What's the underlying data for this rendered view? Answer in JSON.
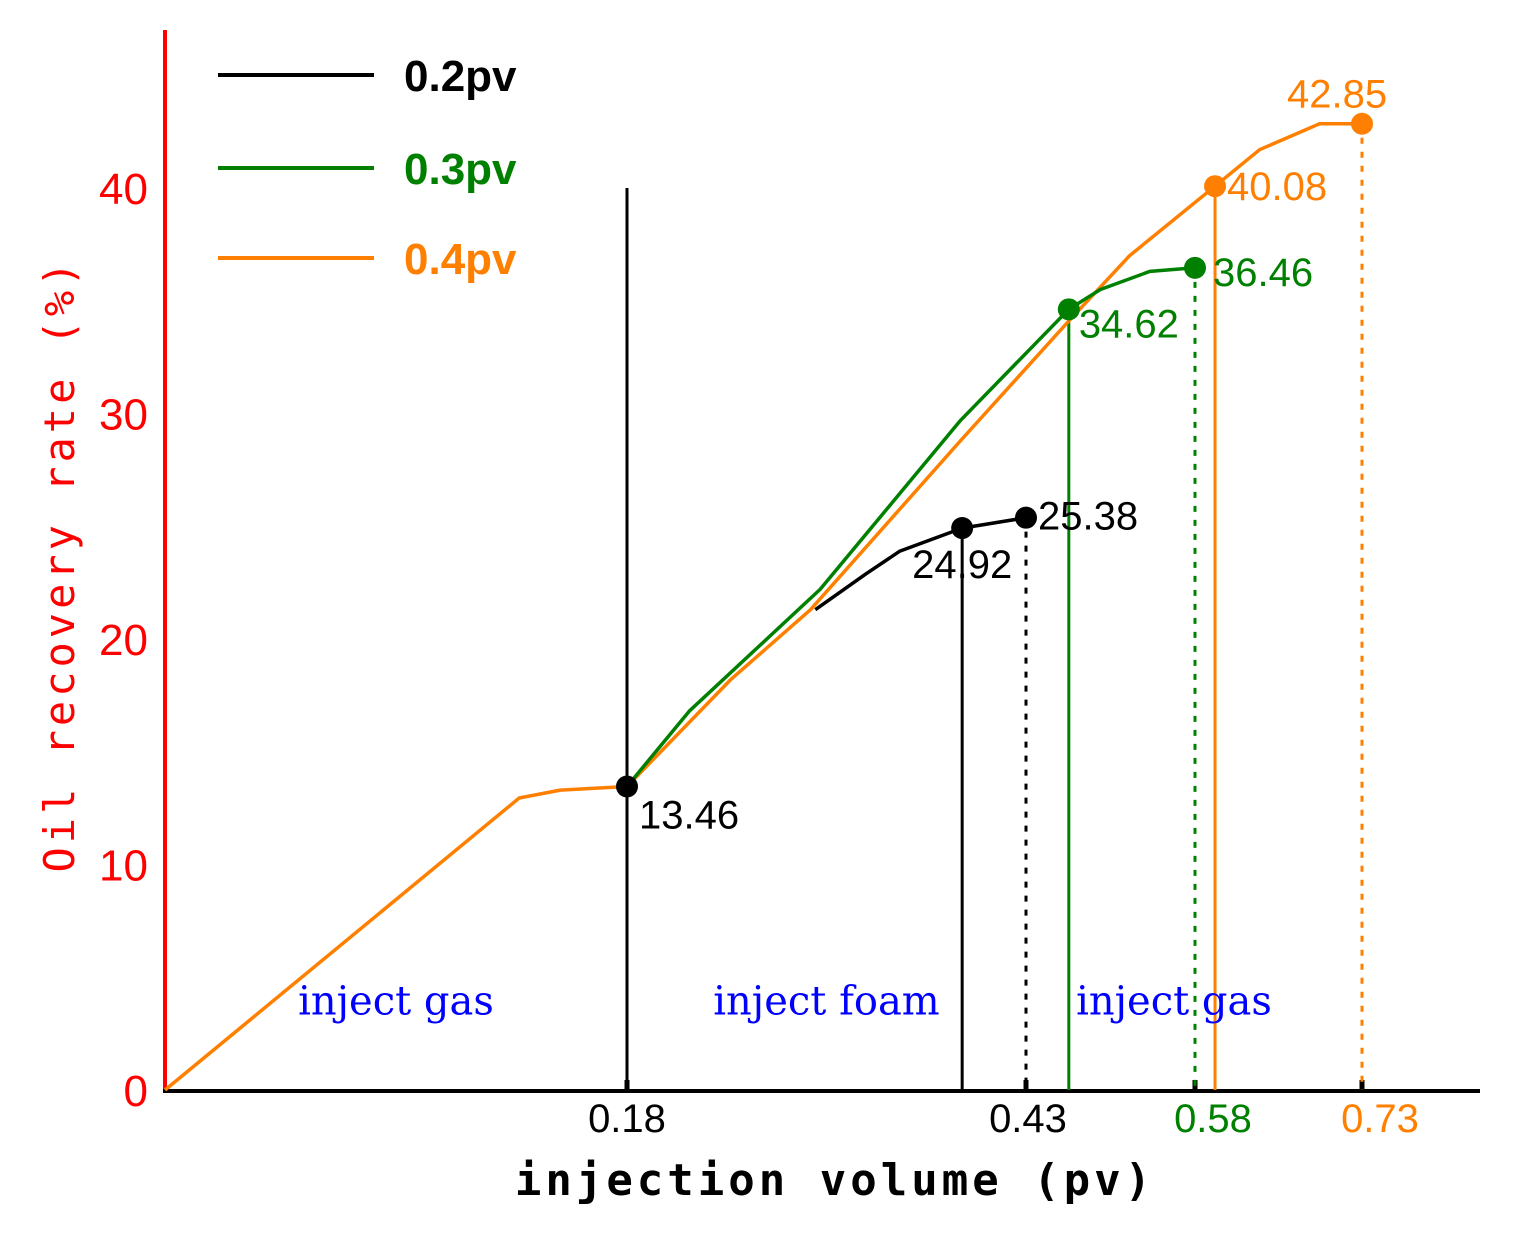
{
  "chart_data": {
    "type": "line",
    "title": "",
    "xlabel": "injection volume (pv)",
    "ylabel": "Oil recovery rate (%)",
    "ylim": [
      0,
      47
    ],
    "yticks": [
      0,
      10,
      20,
      30,
      40
    ],
    "ytick_labels": [
      "0",
      "10",
      "20",
      "30",
      "40"
    ],
    "xticks": [
      {
        "value": 0.18,
        "label": "0.18",
        "color": "#000000"
      },
      {
        "value": 0.43,
        "label": "0.43",
        "color": "#000000"
      },
      {
        "value": 0.58,
        "label": "0.58",
        "color": "#008000"
      },
      {
        "value": 0.73,
        "label": "0.73",
        "color": "#FF8000"
      }
    ],
    "grid": false,
    "legend_position": "top-left",
    "colors": {
      "axis_y": "#FF0000",
      "axis_x": "#000000",
      "region_text": "#0000FF"
    },
    "series": [
      {
        "name": "0.2pv",
        "color": "#000000",
        "x": [
          0.298,
          0.33,
          0.351,
          0.39,
          0.43
        ],
        "y": [
          21.3,
          22.9,
          23.9,
          24.92,
          25.38
        ]
      },
      {
        "name": "0.3pv",
        "color": "#008000",
        "x": [
          0.18,
          0.219,
          0.301,
          0.389,
          0.468,
          0.496,
          0.54,
          0.58
        ],
        "y": [
          13.46,
          16.8,
          22.2,
          29.7,
          34.62,
          35.5,
          36.3,
          36.46
        ]
      },
      {
        "name": "0.4pv",
        "color": "#FF8000",
        "x": [
          0,
          0.138,
          0.154,
          0.18,
          0.245,
          0.295,
          0.389,
          0.468,
          0.522,
          0.598,
          0.638,
          0.692,
          0.73
        ],
        "y": [
          0,
          12.95,
          13.3,
          13.46,
          18.2,
          21.3,
          28.8,
          34.1,
          37.0,
          40.08,
          41.7,
          42.85,
          42.85
        ]
      }
    ],
    "markers": [
      {
        "x": 0.18,
        "y": 13.46,
        "label": "13.46",
        "color": "#000000"
      },
      {
        "x": 0.39,
        "y": 24.92,
        "label": "24.92",
        "color": "#000000"
      },
      {
        "x": 0.43,
        "y": 25.38,
        "label": "25.38",
        "color": "#000000"
      },
      {
        "x": 0.468,
        "y": 34.62,
        "label": "34.62",
        "color": "#008000"
      },
      {
        "x": 0.58,
        "y": 36.46,
        "label": "36.46",
        "color": "#008000"
      },
      {
        "x": 0.598,
        "y": 40.08,
        "label": "40.08",
        "color": "#FF8000"
      },
      {
        "x": 0.73,
        "y": 42.85,
        "label": "42.85",
        "color": "#FF8000"
      }
    ],
    "vlines": [
      {
        "x": 0.18,
        "y": 40,
        "color": "#000000",
        "style": "solid"
      },
      {
        "x": 0.39,
        "y": 24.92,
        "color": "#000000",
        "style": "solid"
      },
      {
        "x": 0.43,
        "y": 25.38,
        "color": "#000000",
        "style": "dotted"
      },
      {
        "x": 0.468,
        "y": 34.62,
        "color": "#008000",
        "style": "solid"
      },
      {
        "x": 0.58,
        "y": 36.46,
        "color": "#008000",
        "style": "dotted"
      },
      {
        "x": 0.598,
        "y": 40.08,
        "color": "#FF8000",
        "style": "solid"
      },
      {
        "x": 0.73,
        "y": 42.85,
        "color": "#FF8000",
        "style": "dotted"
      }
    ],
    "annotations": [
      {
        "text": "inject gas",
        "x_from": 0,
        "x_to": 0.18,
        "y": 3.8
      },
      {
        "text": "inject foam",
        "x_from": 0.18,
        "x_to": 0.43,
        "y": 3.8
      },
      {
        "text": "inject gas",
        "x_from": 0.43,
        "x_to": 0.73,
        "y": 3.8
      }
    ]
  }
}
